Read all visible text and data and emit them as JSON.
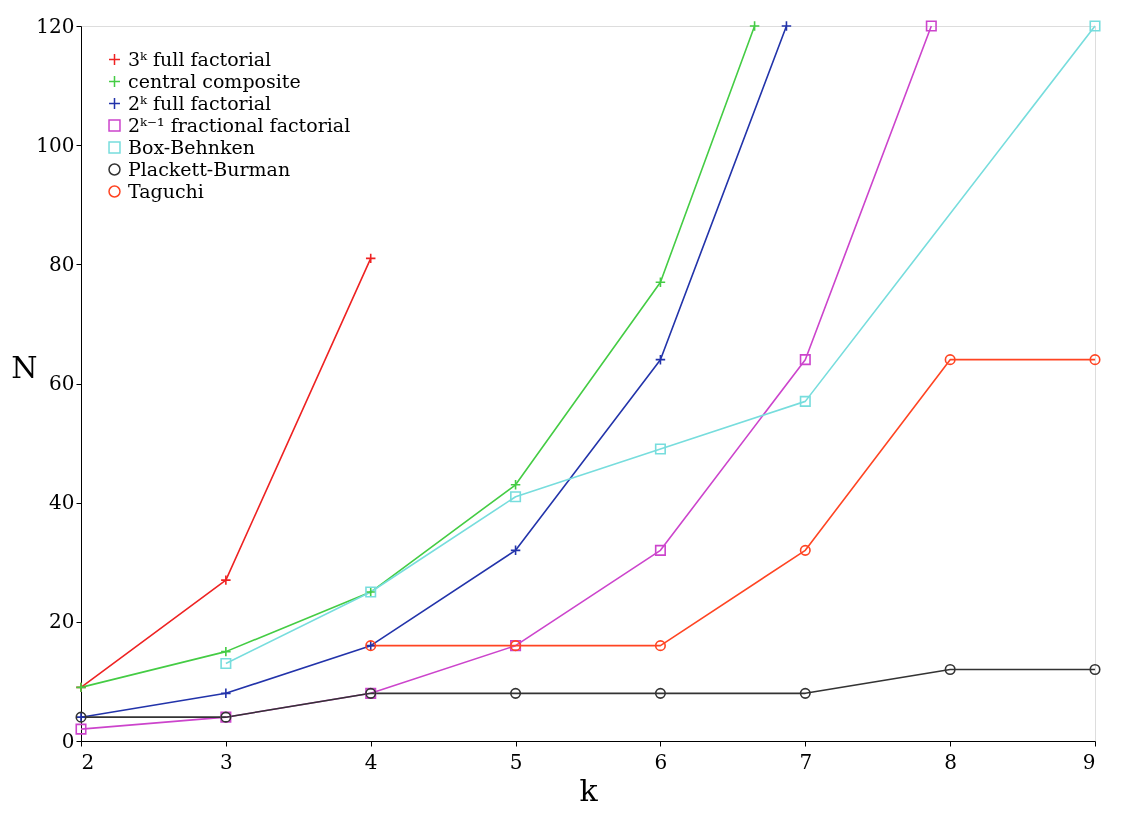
{
  "chart_data": {
    "type": "line",
    "xlabel": "k",
    "ylabel": "N",
    "xlim": [
      2,
      9
    ],
    "ylim": [
      0,
      120
    ],
    "xticks": [
      2,
      3,
      4,
      5,
      6,
      7,
      8,
      9
    ],
    "yticks": [
      0,
      20,
      40,
      60,
      80,
      100,
      120
    ],
    "grid": false,
    "legend": "top left",
    "line_style": "solid",
    "series": [
      {
        "name": "3ᵏ full factorial",
        "color": "#ee2222",
        "marker": "cross",
        "x": [
          2,
          3,
          4
        ],
        "values": [
          9,
          27,
          81
        ]
      },
      {
        "name": "central composite",
        "color": "#44cc44",
        "marker": "cross",
        "x": [
          2,
          3,
          4,
          5,
          6,
          6.65
        ],
        "values": [
          9,
          15,
          25,
          43,
          77,
          120
        ]
      },
      {
        "name": "2ᵏ full factorial",
        "color": "#2233aa",
        "marker": "cross",
        "x": [
          2,
          3,
          4,
          5,
          6,
          6.87
        ],
        "values": [
          4,
          8,
          16,
          32,
          64,
          120
        ]
      },
      {
        "name": "2ᵏ⁻¹ fractional factorial",
        "color": "#cc44cc",
        "marker": "square",
        "x": [
          2,
          3,
          4,
          5,
          6,
          7,
          7.87
        ],
        "values": [
          2,
          4,
          8,
          16,
          32,
          64,
          120
        ]
      },
      {
        "name": "Box-Behnken",
        "color": "#77dddd",
        "marker": "square",
        "x": [
          3,
          4,
          5,
          6,
          7,
          9
        ],
        "values": [
          13,
          25,
          41,
          49,
          57,
          120
        ]
      },
      {
        "name": "Plackett-Burman",
        "color": "#333333",
        "marker": "circle",
        "x": [
          2,
          3,
          4,
          5,
          6,
          7,
          8,
          9
        ],
        "values": [
          4,
          4,
          8,
          8,
          8,
          8,
          12,
          12
        ]
      },
      {
        "name": "Taguchi",
        "color": "#ff4422",
        "marker": "circle",
        "x": [
          4,
          5,
          6,
          7,
          8,
          9
        ],
        "values": [
          16,
          16,
          16,
          32,
          64,
          64
        ]
      }
    ]
  }
}
